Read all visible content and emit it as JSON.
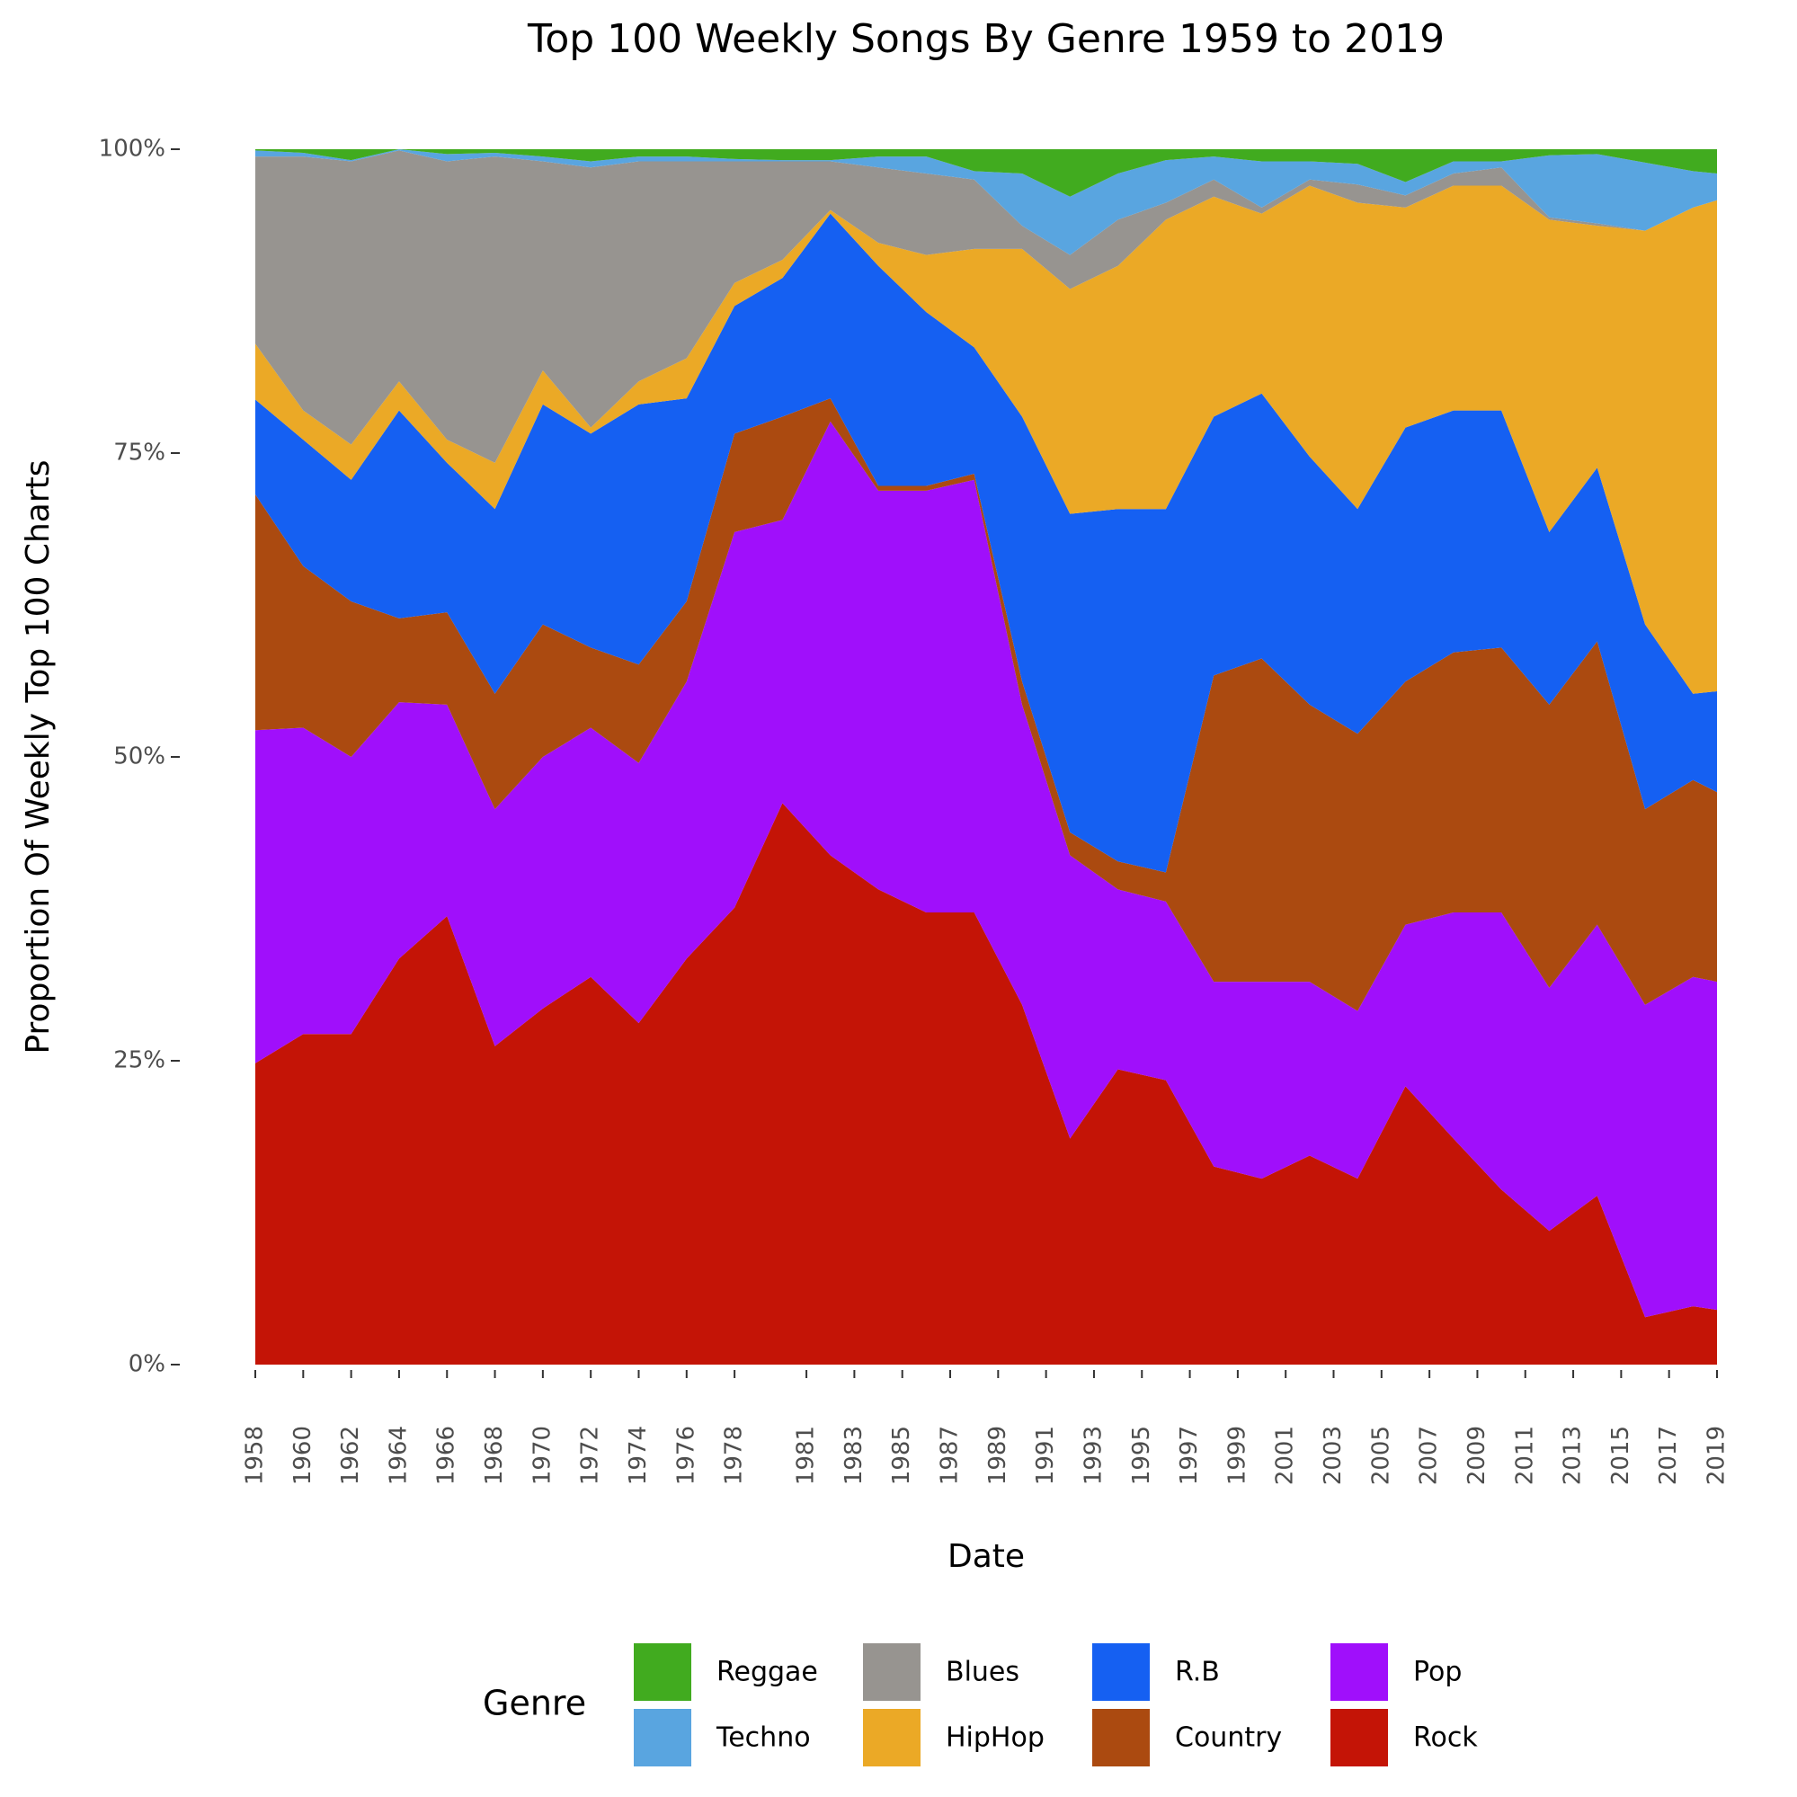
{
  "chart_data": {
    "type": "stacked_area",
    "title": "Top 100 Weekly Songs By Genre 1959 to 2019",
    "x_label": "Date",
    "y_label": "Proportion Of Weekly Top 100 Charts",
    "legend_title": "Genre",
    "legend": "bottom",
    "grid": false,
    "x": [
      1958,
      1960,
      1962,
      1964,
      1966,
      1968,
      1970,
      1972,
      1974,
      1976,
      1978,
      1980,
      1982,
      1984,
      1986,
      1988,
      1990,
      1992,
      1994,
      1996,
      1998,
      2000,
      2002,
      2004,
      2006,
      2008,
      2010,
      2012,
      2014,
      2016,
      2018,
      2019
    ],
    "xlim": [
      1958,
      2019
    ],
    "xticks": [
      1958,
      1960,
      1962,
      1964,
      1966,
      1968,
      1970,
      1972,
      1974,
      1976,
      1978,
      1981,
      1983,
      1985,
      1987,
      1989,
      1991,
      1993,
      1995,
      1997,
      1999,
      2001,
      2003,
      2005,
      2007,
      2009,
      2011,
      2013,
      2015,
      2017,
      2019
    ],
    "ylim": [
      0,
      100
    ],
    "yticks": [
      {
        "value": 0,
        "label": "0%"
      },
      {
        "value": 25,
        "label": "25%"
      },
      {
        "value": 50,
        "label": "50%"
      },
      {
        "value": 75,
        "label": "75%"
      },
      {
        "value": 100,
        "label": "100%"
      }
    ],
    "series": [
      {
        "name": "Reggae",
        "color": "#41ab1f",
        "values": [
          0.1,
          0.3,
          0.9,
          0.0,
          0.4,
          0.3,
          0.6,
          1.0,
          0.6,
          0.6,
          0.8,
          0.9,
          0.9,
          0.6,
          0.6,
          1.8,
          2.0,
          3.9,
          2.0,
          0.9,
          0.6,
          1.0,
          1.0,
          1.2,
          2.7,
          1.0,
          1.0,
          0.5,
          0.4,
          1.1,
          1.8,
          2.0
        ]
      },
      {
        "name": "Techno",
        "color": "#59a5e0",
        "values": [
          0.5,
          0.3,
          0.1,
          0.1,
          0.6,
          0.3,
          0.4,
          0.5,
          0.4,
          0.4,
          0.2,
          0.1,
          0.1,
          0.9,
          1.4,
          0.7,
          4.3,
          4.8,
          3.8,
          3.5,
          1.9,
          3.8,
          1.5,
          1.7,
          1.1,
          1.0,
          0.5,
          5.1,
          5.7,
          5.6,
          3.0,
          2.2
        ]
      },
      {
        "name": "Blues",
        "color": "#979490",
        "values": [
          15.4,
          20.9,
          23.3,
          19.0,
          22.9,
          25.2,
          17.2,
          21.4,
          18.1,
          16.2,
          10.0,
          8.1,
          4.0,
          6.2,
          6.7,
          5.7,
          1.9,
          2.8,
          3.8,
          1.4,
          1.4,
          0.5,
          0.5,
          1.5,
          1.0,
          1.0,
          1.5,
          0.2,
          0.2,
          0,
          0,
          0
        ]
      },
      {
        "name": "HipHop",
        "color": "#eba926",
        "values": [
          4.6,
          2.4,
          2.9,
          2.4,
          1.9,
          3.8,
          2.8,
          0.5,
          1.9,
          3.3,
          1.9,
          1.5,
          0.3,
          1.9,
          4.7,
          8.1,
          13.8,
          18.5,
          20.0,
          23.8,
          18.1,
          14.8,
          22.3,
          25.2,
          18.1,
          18.5,
          18.5,
          25.7,
          19.9,
          32.4,
          40.0,
          40.4
        ]
      },
      {
        "name": "R.B",
        "color": "#1560f2",
        "values": [
          7.8,
          10.4,
          10.0,
          17.1,
          12.3,
          15.2,
          18.1,
          17.6,
          21.4,
          16.7,
          10.5,
          11.4,
          15.2,
          18.1,
          14.3,
          10.4,
          21.8,
          26.2,
          29.0,
          29.9,
          21.3,
          21.8,
          20.4,
          18.5,
          20.9,
          19.9,
          19.5,
          14.2,
          14.3,
          15.2,
          7.1,
          8.3
        ]
      },
      {
        "name": "Country",
        "color": "#ab4a10",
        "values": [
          19.4,
          13.3,
          12.8,
          6.9,
          7.6,
          9.5,
          10.9,
          6.6,
          8.1,
          6.6,
          8.1,
          8.5,
          1.9,
          0.4,
          0.4,
          0.5,
          1.9,
          1.9,
          2.3,
          2.4,
          25.2,
          26.6,
          22.8,
          22.8,
          20.0,
          21.4,
          21.8,
          23.3,
          23.3,
          16.1,
          16.2,
          15.6
        ]
      },
      {
        "name": "Pop",
        "color": "#a00ffb",
        "values": [
          27.4,
          25.2,
          22.8,
          21.1,
          17.4,
          19.5,
          20.7,
          20.5,
          21.4,
          22.8,
          30.9,
          23.3,
          35.7,
          32.8,
          34.7,
          35.6,
          24.7,
          23.3,
          14.8,
          14.7,
          15.2,
          16.2,
          14.3,
          13.8,
          13.3,
          18.6,
          22.8,
          20.0,
          22.3,
          25.7,
          27.1,
          27.0
        ]
      },
      {
        "name": "Rock",
        "color": "#c41406",
        "values": [
          24.8,
          27.2,
          27.2,
          33.4,
          36.9,
          26.2,
          29.3,
          31.9,
          28.1,
          33.4,
          37.6,
          46.2,
          41.9,
          39.1,
          37.2,
          37.2,
          29.6,
          18.6,
          24.3,
          23.4,
          16.3,
          15.3,
          17.2,
          15.3,
          22.9,
          18.6,
          14.4,
          11.0,
          13.9,
          3.9,
          4.8,
          4.5
        ]
      }
    ]
  }
}
